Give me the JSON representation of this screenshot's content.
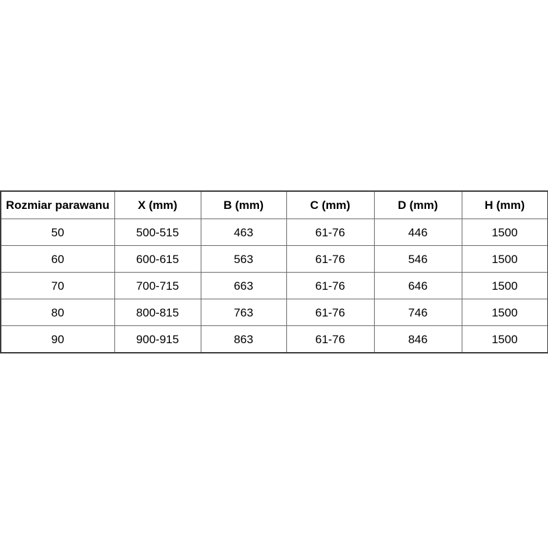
{
  "table": {
    "headers": [
      "Rozmiar parawanu",
      "X (mm)",
      "B (mm)",
      "C (mm)",
      "D (mm)",
      "H (mm)"
    ],
    "rows": [
      [
        "50",
        "500-515",
        "463",
        "61-76",
        "446",
        "1500"
      ],
      [
        "60",
        "600-615",
        "563",
        "61-76",
        "546",
        "1500"
      ],
      [
        "70",
        "700-715",
        "663",
        "61-76",
        "646",
        "1500"
      ],
      [
        "80",
        "800-815",
        "763",
        "61-76",
        "746",
        "1500"
      ],
      [
        "90",
        "900-915",
        "863",
        "61-76",
        "846",
        "1500"
      ]
    ]
  },
  "chart_data": {
    "type": "table",
    "title": "",
    "columns": [
      "Rozmiar parawanu",
      "X (mm)",
      "B (mm)",
      "C (mm)",
      "D (mm)",
      "H (mm)"
    ],
    "rows": [
      {
        "Rozmiar parawanu": "50",
        "X (mm)": "500-515",
        "B (mm)": 463,
        "C (mm)": "61-76",
        "D (mm)": 446,
        "H (mm)": 1500
      },
      {
        "Rozmiar parawanu": "60",
        "X (mm)": "600-615",
        "B (mm)": 563,
        "C (mm)": "61-76",
        "D (mm)": 546,
        "H (mm)": 1500
      },
      {
        "Rozmiar parawanu": "70",
        "X (mm)": "700-715",
        "B (mm)": 663,
        "C (mm)": "61-76",
        "D (mm)": 646,
        "H (mm)": 1500
      },
      {
        "Rozmiar parawanu": "80",
        "X (mm)": "800-815",
        "B (mm)": 763,
        "C (mm)": "61-76",
        "D (mm)": 746,
        "H (mm)": 1500
      },
      {
        "Rozmiar parawanu": "90",
        "X (mm)": "900-915",
        "B (mm)": 863,
        "C (mm)": "61-76",
        "D (mm)": 846,
        "H (mm)": 1500
      }
    ],
    "colors": {
      "background": "#ffffff",
      "grid_border": "#6a6a6a",
      "outer_border": "#3a3a3a",
      "text": "#000000"
    }
  }
}
